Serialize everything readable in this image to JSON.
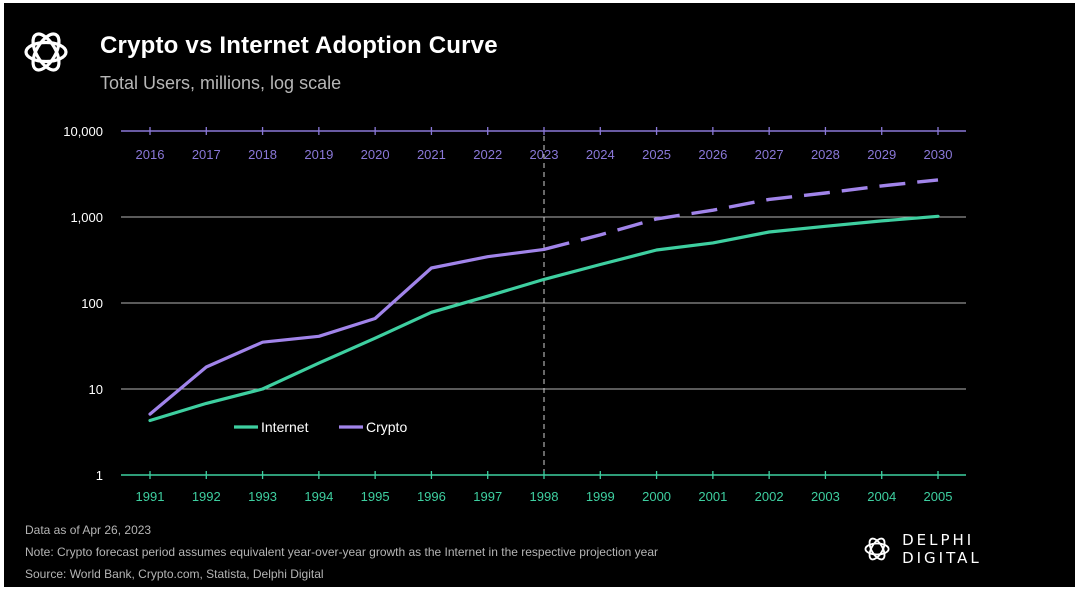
{
  "header": {
    "title": "Crypto vs Internet Adoption Curve",
    "subtitle": "Total Users, millions, log scale"
  },
  "footer": {
    "data_as_of": "Data as of Apr 26, 2023",
    "note": "Note: Crypto forecast period assumes equivalent year-over-year growth as the Internet in the respective projection year",
    "source": "Source: World Bank, Crypto.com,  Statista, Delphi Digital"
  },
  "brand": {
    "name": "DELPHI DIGITAL",
    "icon": "delphi-knot-icon"
  },
  "colors": {
    "background": "#000000",
    "internet": "#3ecfa0",
    "crypto": "#a184ea",
    "grid": "#b5b5b5",
    "top_axis": "#8a78d8"
  },
  "chart_data": {
    "type": "line",
    "y_scale": "log",
    "ylim": [
      1,
      10000
    ],
    "y_ticks": [
      "1",
      "10",
      "100",
      "1,000",
      "10,000"
    ],
    "x_bottom_label_axis": [
      "1991",
      "1992",
      "1993",
      "1994",
      "1995",
      "1996",
      "1997",
      "1998",
      "1999",
      "2000",
      "2001",
      "2002",
      "2003",
      "2004",
      "2005"
    ],
    "x_top_label_axis": [
      "2016",
      "2017",
      "2018",
      "2019",
      "2020",
      "2021",
      "2022",
      "2023",
      "2024",
      "2025",
      "2026",
      "2027",
      "2028",
      "2029",
      "2030"
    ],
    "divider_at_index": 7,
    "legend": {
      "placement": "center-left",
      "entries": [
        "Internet",
        "Crypto"
      ]
    },
    "series": [
      {
        "name": "Internet",
        "axis": "bottom",
        "style": "solid",
        "values": [
          4.3,
          6.8,
          10,
          20,
          39,
          78,
          120,
          188,
          280,
          413,
          500,
          670,
          780,
          900,
          1020
        ]
      },
      {
        "name": "Crypto",
        "axis": "top",
        "style": "solid",
        "values": [
          5.1,
          18,
          35,
          41,
          66,
          255,
          345,
          420
        ]
      },
      {
        "name": "Crypto",
        "axis": "top",
        "style": "dashed",
        "role": "forecast",
        "start_index": 7,
        "values": [
          420,
          620,
          950,
          1200,
          1600,
          1900,
          2300,
          2700
        ]
      }
    ]
  }
}
